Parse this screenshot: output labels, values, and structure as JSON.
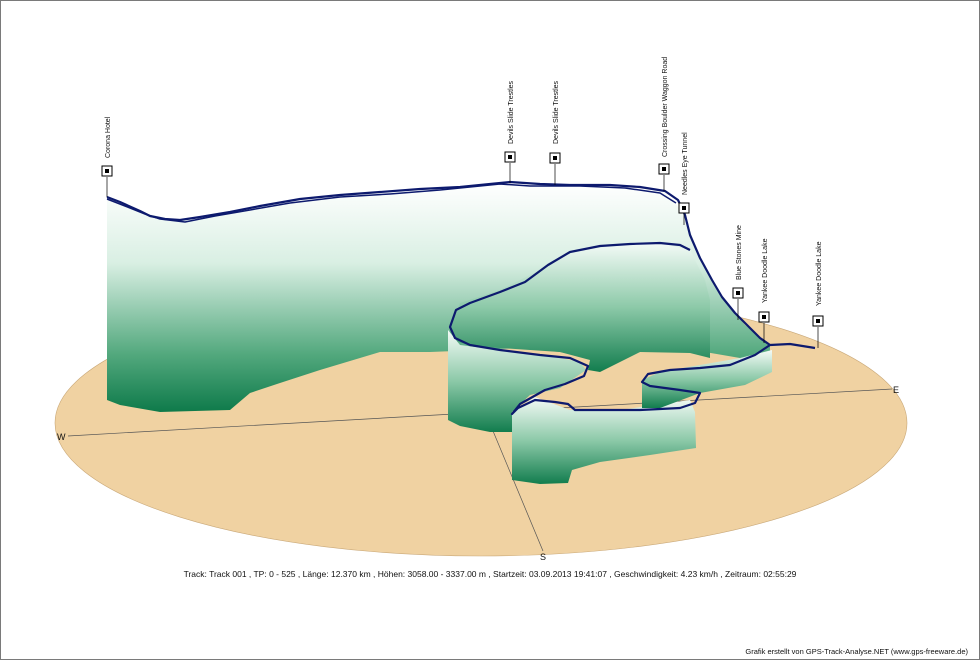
{
  "compass": {
    "west": "W",
    "east": "E",
    "south": "S"
  },
  "waypoints": [
    {
      "id": "corona",
      "label": "Corona Hotel"
    },
    {
      "id": "devils1",
      "label": "Devils Slide Trestles"
    },
    {
      "id": "devils2",
      "label": "Devils Slide Trestles"
    },
    {
      "id": "crossing",
      "label": "Crossing Boulder Waggon Road"
    },
    {
      "id": "needles",
      "label": "Needles Eye Tunnel"
    },
    {
      "id": "bluestones",
      "label": "Blue Stones Mine"
    },
    {
      "id": "yankee1",
      "label": "Yankee Doodle Lake"
    },
    {
      "id": "yankee2",
      "label": "Yankee Doodle Lake"
    }
  ],
  "info": {
    "line": "Track: Track 001   ,  TP: 0 - 525   ,  Länge: 12.370 km   ,  Höhen: 3058.00 - 3337.00 m   ,  Startzeit: 03.09.2013 19:41:07   ,  Geschwindigkeit: 4.23 km/h   ,  Zeitraum: 02:55:29"
  },
  "credit": "Grafik erstellt von GPS-Track-Analyse.NET (www.gps-freeware.de)",
  "colors": {
    "ground": "#f0d2a2",
    "curtain_top": "#ffffff",
    "curtain_bottom": "#0e7a4a",
    "track": "#0d1a6e"
  }
}
